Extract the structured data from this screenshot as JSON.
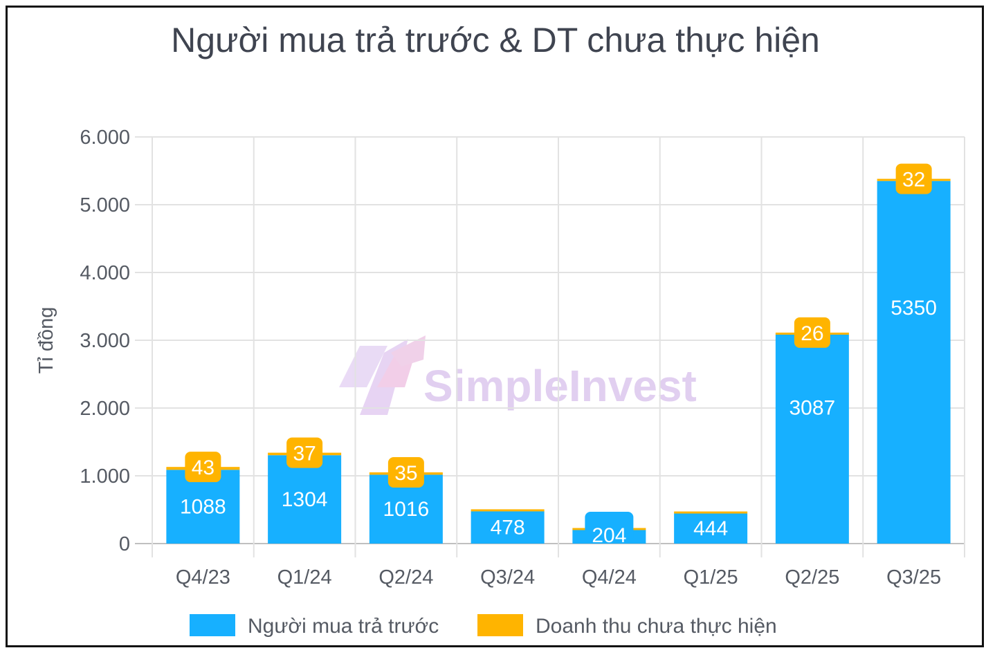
{
  "chart_data": {
    "type": "bar",
    "stacked": true,
    "title": "Người mua trả trước & DT chưa thực hiện",
    "ylabel": "Tỉ đồng",
    "xlabel": "",
    "ylim": [
      0,
      6000
    ],
    "yticks": [
      "0",
      "1.000",
      "2.000",
      "3.000",
      "4.000",
      "5.000",
      "6.000"
    ],
    "categories": [
      "Q4/23",
      "Q1/24",
      "Q2/24",
      "Q3/24",
      "Q4/24",
      "Q1/25",
      "Q2/25",
      "Q3/25"
    ],
    "series": [
      {
        "name": "Người mua trả trước",
        "color": "#17b0ff",
        "values": [
          1088,
          1304,
          1016,
          478,
          204,
          444,
          3087,
          5350
        ],
        "labels": [
          "1088",
          "1304",
          "1016",
          "478",
          "204",
          "444",
          "3087",
          "5350"
        ]
      },
      {
        "name": "Doanh thu chưa thực hiện",
        "color": "#ffb400",
        "values": [
          43,
          37,
          35,
          28,
          26,
          30,
          26,
          32
        ],
        "labels": [
          "43",
          "37",
          "35",
          "",
          "",
          "",
          "26",
          "32"
        ]
      }
    ],
    "grid": true,
    "legend": "bottom",
    "watermark": "SimpleInvest"
  }
}
